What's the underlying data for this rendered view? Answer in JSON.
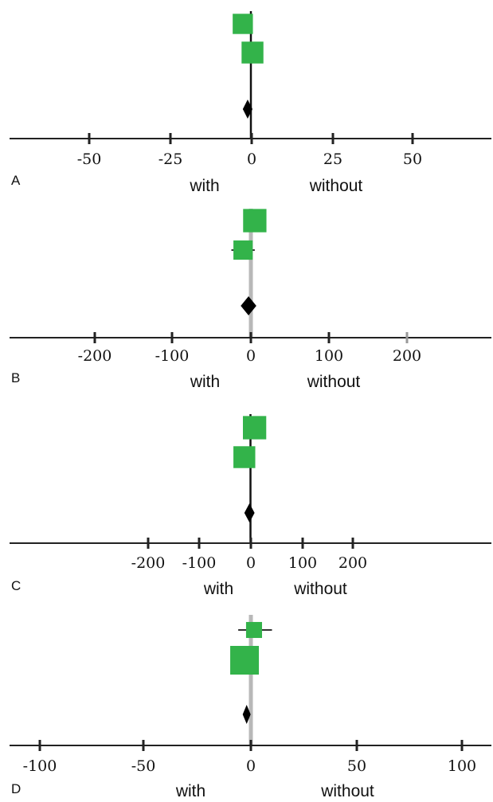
{
  "chart_data": [
    {
      "panel_label": "A",
      "type": "forest",
      "x_ticks": [
        -50,
        -25,
        0,
        25,
        50
      ],
      "xlim": [
        -75,
        75
      ],
      "reference_line": 0,
      "left_label": "with",
      "right_label": "without",
      "studies": [
        {
          "estimate": -2.5,
          "ci": [
            -2.5,
            -2.5
          ],
          "weight": 0.35
        },
        {
          "estimate": 0.5,
          "ci": [
            0.5,
            0.5
          ],
          "weight": 0.45
        }
      ],
      "pooled": {
        "estimate": -1,
        "ci": [
          -2.5,
          0.5
        ]
      }
    },
    {
      "panel_label": "B",
      "type": "forest",
      "x_ticks": [
        -200,
        -100,
        0,
        100,
        200
      ],
      "xlim": [
        -310,
        310
      ],
      "reference_line": 0,
      "left_label": "with",
      "right_label": "without",
      "studies": [
        {
          "estimate": 5,
          "ci": [
            5,
            5
          ],
          "weight": 0.55
        },
        {
          "estimate": -10,
          "ci": [
            -25,
            5
          ],
          "weight": 0.3
        }
      ],
      "pooled": {
        "estimate": -3,
        "ci": [
          -13,
          7
        ]
      }
    },
    {
      "panel_label": "C",
      "type": "forest",
      "x_ticks": [
        -200,
        -100,
        0,
        100,
        200
      ],
      "xlim": [
        -480,
        460
      ],
      "reference_line": 0,
      "left_label": "with",
      "right_label": "without",
      "studies": [
        {
          "estimate": 8,
          "ci": [
            8,
            8
          ],
          "weight": 0.55
        },
        {
          "estimate": -12,
          "ci": [
            -12,
            -12
          ],
          "weight": 0.45
        }
      ],
      "pooled": {
        "estimate": -2,
        "ci": [
          -12,
          8
        ]
      }
    },
    {
      "panel_label": "D",
      "type": "forest",
      "x_ticks": [
        -100,
        -50,
        0,
        50,
        100
      ],
      "xlim": [
        -120,
        120
      ],
      "reference_line": 0,
      "left_label": "with",
      "right_label": "without",
      "studies": [
        {
          "estimate": 1.5,
          "ci": [
            -6,
            10
          ],
          "weight": 0.15
        },
        {
          "estimate": -3,
          "ci": [
            -3,
            -3
          ],
          "weight": 1.0
        }
      ],
      "pooled": {
        "estimate": -2,
        "ci": [
          -3,
          -1
        ]
      }
    }
  ],
  "colors": {
    "study_marker": "#33b34a",
    "pooled_marker": "#000000",
    "axis": "#222222",
    "reference_line_dark": "#111111",
    "reference_line_light": "#b8b8b8"
  }
}
